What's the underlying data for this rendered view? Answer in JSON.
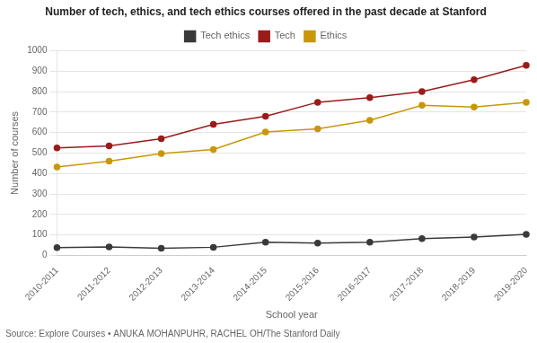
{
  "chart_data": {
    "type": "line",
    "title": "Number of tech, ethics, and tech ethics courses offered in the past decade at Stanford",
    "xlabel": "School year",
    "ylabel": "Number of courses",
    "source": "Source: Explore Courses • ANUKA MOHANPUHR, RACHEL OH/The Stanford Daily",
    "categories": [
      "2010-2011",
      "2011-2012",
      "2012-2013",
      "2013-2014",
      "2014-2015",
      "2015-2016",
      "2016-2017",
      "2017-2018",
      "2018-2019",
      "2019-2020"
    ],
    "series": [
      {
        "name": "Tech ethics",
        "color": "#3a3a3a",
        "values": [
          38,
          42,
          35,
          40,
          65,
          60,
          65,
          82,
          90,
          103
        ]
      },
      {
        "name": "Tech",
        "color": "#9b1b1b",
        "values": [
          525,
          535,
          570,
          640,
          680,
          748,
          770,
          800,
          858,
          928
        ]
      },
      {
        "name": "Ethics",
        "color": "#c8970a",
        "values": [
          432,
          460,
          498,
          517,
          603,
          618,
          660,
          733,
          725,
          748
        ]
      }
    ],
    "marker": "circle",
    "ylim": [
      0,
      1000
    ],
    "yticks": [
      0,
      100,
      200,
      300,
      400,
      500,
      600,
      700,
      800,
      900,
      1000
    ],
    "grid": true,
    "legend": "top"
  }
}
